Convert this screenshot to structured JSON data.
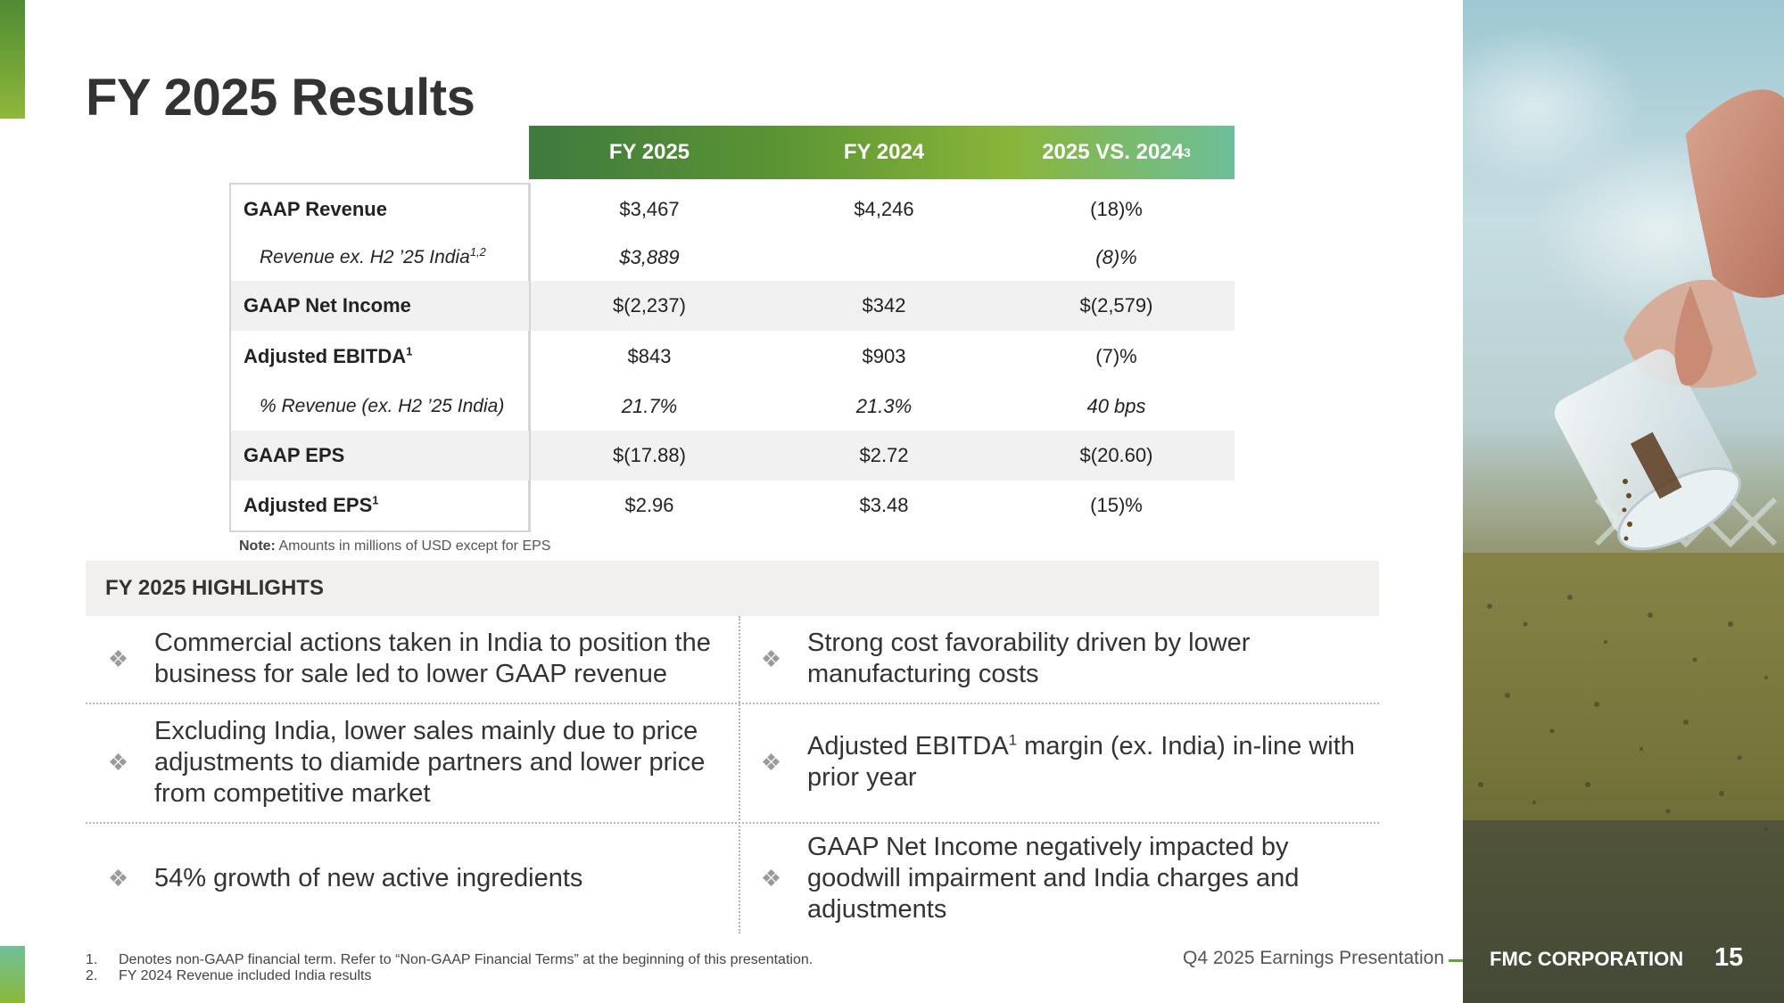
{
  "title": "FY 2025 Results",
  "table": {
    "columns": [
      "FY 2025",
      "FY 2024",
      "2025 VS. 2024"
    ],
    "col3_sup": "3",
    "rows": [
      {
        "label": "GAAP Revenue",
        "sup": "",
        "fy2025": "$3,467",
        "fy2024": "$4,246",
        "change": "(18)%"
      },
      {
        "label": "Revenue ex. H2 ’25 India",
        "sup": "1,2",
        "fy2025": "$3,889",
        "fy2024": "",
        "change": "(8)%"
      },
      {
        "label": "GAAP Net Income",
        "sup": "",
        "fy2025": "$(2,237)",
        "fy2024": "$342",
        "change": "$(2,579)"
      },
      {
        "label": "Adjusted EBITDA",
        "sup": "1",
        "fy2025": "$843",
        "fy2024": "$903",
        "change": "(7)%"
      },
      {
        "label": "% Revenue (ex. H2 ’25 India)",
        "sup": "",
        "fy2025": "21.7%",
        "fy2024": "21.3%",
        "change": "40 bps"
      },
      {
        "label": "GAAP EPS",
        "sup": "",
        "fy2025": "$(17.88)",
        "fy2024": "$2.72",
        "change": "$(20.60)"
      },
      {
        "label": "Adjusted EPS",
        "sup": "1",
        "fy2025": "$2.96",
        "fy2024": "$3.48",
        "change": "(15)%"
      }
    ],
    "note_label": "Note:",
    "note_text": " Amounts in millions of USD except for EPS"
  },
  "highlights": {
    "heading": "FY 2025 HIGHLIGHTS",
    "bullet_glyph": "❖",
    "items": [
      {
        "text": "Commercial actions taken in India to position the business for sale led to lower GAAP revenue"
      },
      {
        "text": "Strong cost favorability driven by lower manufacturing costs"
      },
      {
        "text": "Excluding India, lower sales mainly due to price adjustments to diamide partners and lower price from competitive market"
      },
      {
        "text_before": "Adjusted EBITDA",
        "sup": "1",
        "text_after": " margin (ex. India) in-line with prior year"
      },
      {
        "text": "54% growth of new active ingredients"
      },
      {
        "text": "GAAP Net Income negatively impacted by goodwill impairment and India charges and adjustments"
      }
    ]
  },
  "footnotes": [
    {
      "num": "1.",
      "text": "Denotes non-GAAP financial term. Refer to “Non-GAAP Financial Terms” at the beginning of this presentation."
    },
    {
      "num": "2.",
      "text": "FY 2024 Revenue included India results"
    }
  ],
  "footer": {
    "presentation": "Q4 2025 Earnings Presentation",
    "company": "FMC CORPORATION",
    "page": "15"
  },
  "colors": {
    "accent_green": "#6aa23a",
    "header_gradient_start": "#3f7a3f",
    "header_gradient_end": "#6dbf9a",
    "shaded_row": "#f1f1f1"
  }
}
